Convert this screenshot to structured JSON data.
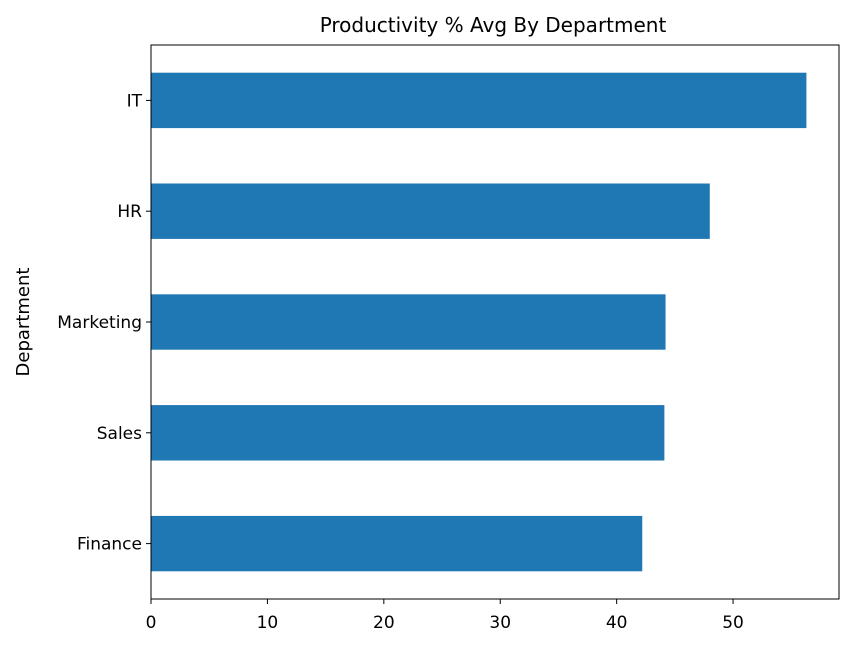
{
  "chart_data": {
    "type": "bar",
    "orientation": "horizontal",
    "title": "Productivity % Avg By Department",
    "xlabel": "",
    "ylabel": "Department",
    "categories": [
      "Finance",
      "Sales",
      "Marketing",
      "HR",
      "IT"
    ],
    "values": [
      42.2,
      44.1,
      44.2,
      48.0,
      56.3
    ],
    "xlim": [
      0,
      59.1
    ],
    "xticks": [
      0,
      10,
      20,
      30,
      40,
      50
    ],
    "grid": false,
    "legend": "none",
    "colors": {
      "bar": "#1f77b4",
      "axis": "#000000",
      "background": "#ffffff"
    }
  }
}
